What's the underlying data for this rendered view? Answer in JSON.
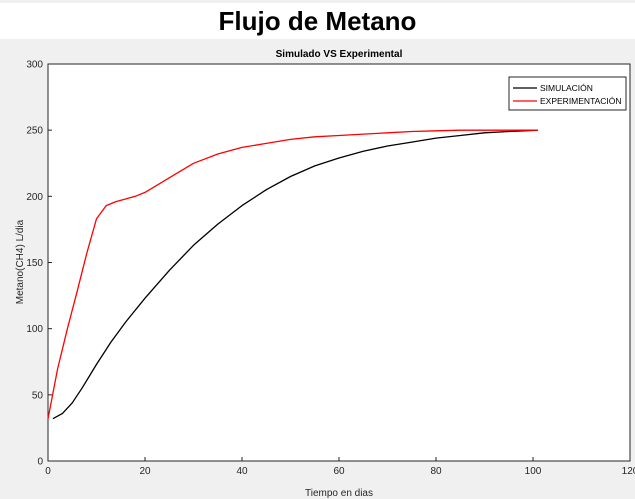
{
  "page": {
    "title": "Flujo de Metano"
  },
  "colors": {
    "background": "#f0f0f0",
    "axes": "#ffffff",
    "simulation": "#000000",
    "experiment": "#ff0000"
  },
  "chart_data": {
    "type": "line",
    "title": "Simulado VS Experimental",
    "xlabel": "Tiempo en dias",
    "ylabel": "Metano(CH4) L/dia",
    "xlim": [
      0,
      120
    ],
    "ylim": [
      0,
      300
    ],
    "xticks": [
      "0",
      "20",
      "40",
      "60",
      "80",
      "100",
      "120"
    ],
    "yticks": [
      "0",
      "50",
      "100",
      "150",
      "200",
      "250",
      "300"
    ],
    "grid": false,
    "legend_position": "top-right",
    "series": [
      {
        "name": "SIMULACIÓN",
        "color": "#000000",
        "x": [
          1,
          3,
          5,
          7,
          10,
          13,
          16,
          20,
          25,
          30,
          35,
          40,
          45,
          50,
          55,
          60,
          65,
          70,
          75,
          80,
          85,
          90,
          95,
          101
        ],
        "y": [
          32,
          36,
          44,
          55,
          73,
          90,
          105,
          123,
          144,
          163,
          179,
          193,
          205,
          215,
          223,
          229,
          234,
          238,
          241,
          244,
          246,
          248,
          249,
          250
        ]
      },
      {
        "name": "EXPERIMENTACIÓN",
        "color": "#ff0000",
        "x": [
          0,
          2,
          4,
          6,
          8,
          10,
          12,
          14,
          16,
          18,
          20,
          25,
          30,
          35,
          40,
          45,
          50,
          55,
          60,
          65,
          70,
          75,
          80,
          85,
          90,
          95,
          101
        ],
        "y": [
          32,
          70,
          100,
          128,
          157,
          183,
          193,
          196,
          198,
          200,
          203,
          214,
          225,
          232,
          237,
          240,
          243,
          245,
          246,
          247,
          248,
          249,
          249.5,
          250,
          250,
          250,
          250
        ]
      }
    ]
  }
}
